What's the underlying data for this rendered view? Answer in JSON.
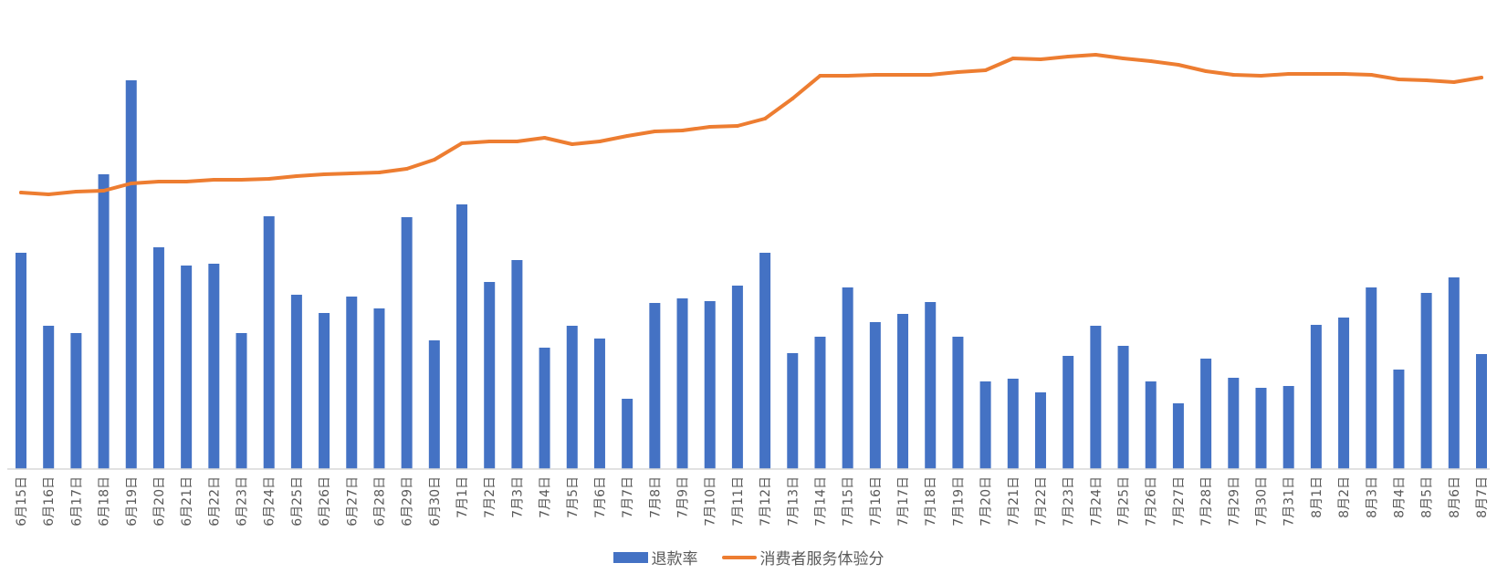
{
  "chart_data": {
    "type": "bar",
    "categories": [
      "6月15日",
      "6月16日",
      "6月17日",
      "6月18日",
      "6月19日",
      "6月20日",
      "6月21日",
      "6月22日",
      "6月23日",
      "6月24日",
      "6月25日",
      "6月26日",
      "6月27日",
      "6月28日",
      "6月29日",
      "6月30日",
      "7月1日",
      "7月2日",
      "7月3日",
      "7月4日",
      "7月5日",
      "7月6日",
      "7月7日",
      "7月8日",
      "7月9日",
      "7月10日",
      "7月11日",
      "7月12日",
      "7月13日",
      "7月14日",
      "7月15日",
      "7月16日",
      "7月17日",
      "7月18日",
      "7月19日",
      "7月20日",
      "7月21日",
      "7月22日",
      "7月23日",
      "7月24日",
      "7月25日",
      "7月26日",
      "7月27日",
      "7月28日",
      "7月29日",
      "7月30日",
      "7月31日",
      "8月1日",
      "8月2日",
      "8月3日",
      "8月4日",
      "8月5日",
      "8月6日",
      "8月7日"
    ],
    "series": [
      {
        "name": "退款率",
        "type": "bar",
        "color": "#4472C4",
        "values": [
          237,
          157,
          149,
          323,
          426,
          243,
          223,
          225,
          149,
          277,
          191,
          171,
          189,
          176,
          276,
          141,
          290,
          205,
          229,
          133,
          157,
          143,
          77,
          182,
          187,
          184,
          201,
          237,
          127,
          145,
          199,
          161,
          170,
          183,
          145,
          96,
          99,
          84,
          124,
          157,
          135,
          96,
          72,
          121,
          100,
          89,
          91,
          158,
          166,
          199,
          109,
          193,
          210,
          126
        ]
      },
      {
        "name": "消费者服务体验分",
        "type": "line",
        "color": "#ED7D31",
        "values": [
          303,
          301,
          304,
          305,
          313,
          315,
          315,
          317,
          317,
          318,
          321,
          323,
          324,
          325,
          329,
          339,
          357,
          359,
          359,
          363,
          356,
          359,
          365,
          370,
          371,
          375,
          376,
          384,
          406,
          431,
          431,
          432,
          432,
          432,
          435,
          437,
          450,
          449,
          452,
          454,
          450,
          447,
          443,
          436,
          432,
          431,
          433,
          433,
          433,
          432,
          427,
          426,
          424,
          429
        ]
      }
    ],
    "xlabel": "",
    "ylabel": "",
    "ylim": [
      0,
      500
    ],
    "grid": false,
    "legend_position": "bottom"
  }
}
